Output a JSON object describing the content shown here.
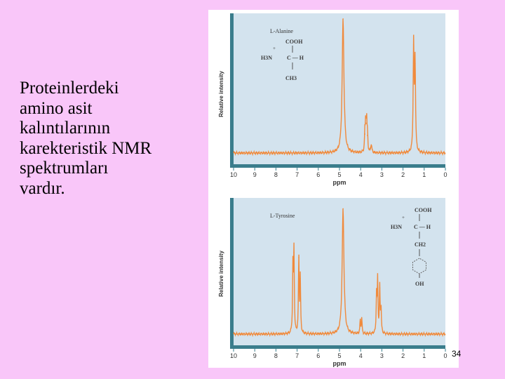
{
  "slide": {
    "body_text_lines": [
      "Proteinlerdeki",
      "amino asit",
      "kalıntılarının",
      "karekteristik NMR",
      "spektrumları",
      "vardır."
    ],
    "slide_number": "34"
  },
  "colors": {
    "background": "#f9c6f9",
    "plot_background": "#d3e3ee",
    "axis": "#3a7d8c",
    "spectrum": "#f08a3c",
    "structure_text": "#3b3b3b"
  },
  "chart_data": [
    {
      "type": "line",
      "title": "L-Alanine",
      "xlabel": "ppm",
      "ylabel": "Relative intensity",
      "xlim": [
        10,
        0
      ],
      "ylim": [
        0,
        1
      ],
      "x_reversed": true,
      "xticks": [
        "10",
        "9",
        "8",
        "7",
        "6",
        "5",
        "4",
        "3",
        "2",
        "1",
        "0"
      ],
      "structure_labels": {
        "carboxyl": "COOH",
        "amine": "H3N",
        "charge": "+",
        "alpha": "C — H",
        "side_chain": "CH3"
      },
      "peaks": [
        {
          "x": 4.83,
          "height": 0.99,
          "width": 0.05
        },
        {
          "x": 3.8,
          "height": 0.14,
          "width": 0.02
        },
        {
          "x": 3.76,
          "height": 0.22,
          "width": 0.02
        },
        {
          "x": 3.72,
          "height": 0.22,
          "width": 0.02
        },
        {
          "x": 3.68,
          "height": 0.13,
          "width": 0.02
        },
        {
          "x": 3.5,
          "height": 0.06,
          "width": 0.03
        },
        {
          "x": 1.5,
          "height": 0.8,
          "width": 0.025
        },
        {
          "x": 1.43,
          "height": 0.66,
          "width": 0.025
        }
      ]
    },
    {
      "type": "line",
      "title": "L-Tyrosine",
      "xlabel": "ppm",
      "ylabel": "Relative intensity",
      "xlim": [
        10,
        0
      ],
      "ylim": [
        0,
        1
      ],
      "x_reversed": true,
      "xticks": [
        "10",
        "9",
        "8",
        "7",
        "6",
        "5",
        "4",
        "3",
        "2",
        "1",
        "0"
      ],
      "structure_labels": {
        "carboxyl": "COOH",
        "amine": "H3N",
        "charge": "+",
        "alpha": "C — H",
        "side_chain": "CH2",
        "hydroxyl": "OH"
      },
      "peaks": [
        {
          "x": 7.2,
          "height": 0.5,
          "width": 0.02
        },
        {
          "x": 7.15,
          "height": 0.62,
          "width": 0.02
        },
        {
          "x": 6.92,
          "height": 0.58,
          "width": 0.02
        },
        {
          "x": 6.85,
          "height": 0.42,
          "width": 0.02
        },
        {
          "x": 4.83,
          "height": 0.95,
          "width": 0.05
        },
        {
          "x": 4.02,
          "height": 0.1,
          "width": 0.02
        },
        {
          "x": 3.95,
          "height": 0.12,
          "width": 0.02
        },
        {
          "x": 3.25,
          "height": 0.28,
          "width": 0.02
        },
        {
          "x": 3.2,
          "height": 0.4,
          "width": 0.02
        },
        {
          "x": 3.1,
          "height": 0.35,
          "width": 0.02
        },
        {
          "x": 3.04,
          "height": 0.2,
          "width": 0.02
        }
      ]
    }
  ]
}
